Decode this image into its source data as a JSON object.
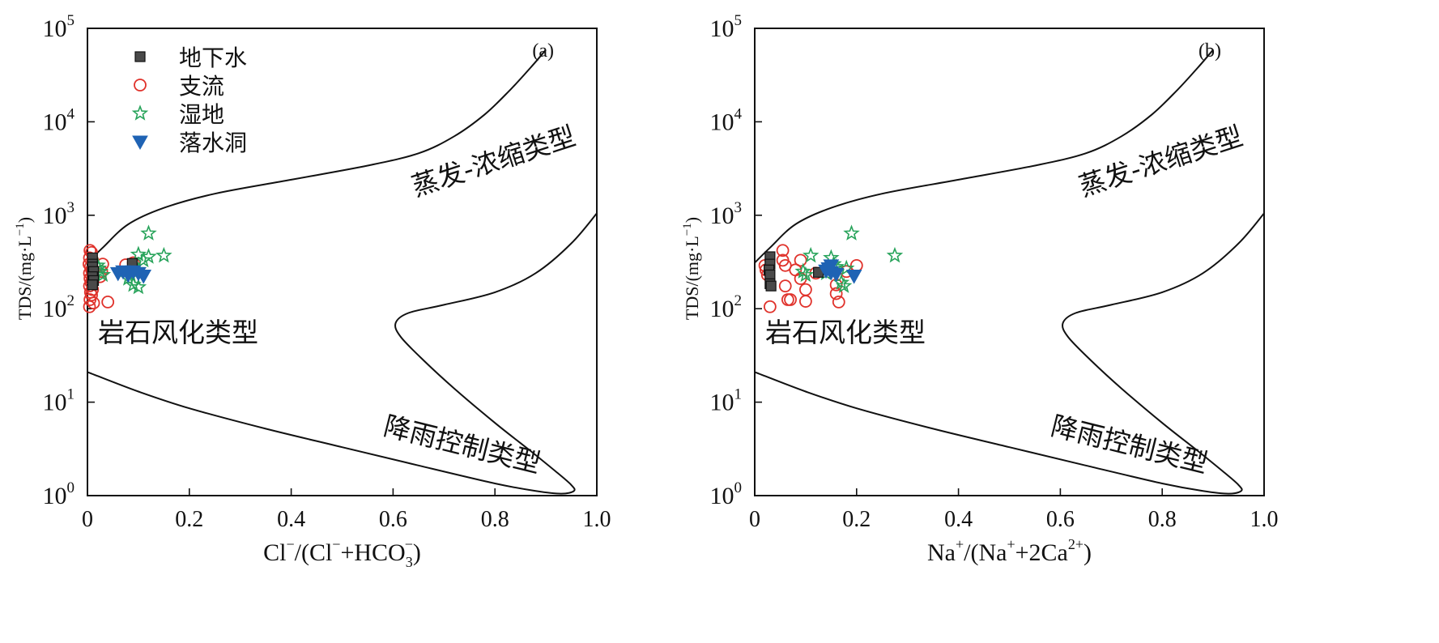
{
  "figure": {
    "panels": [
      "a",
      "b"
    ]
  },
  "chart_data": [
    {
      "type": "scatter",
      "panel_label": "(a)",
      "title": "",
      "xlabel": {
        "main": "Cl",
        "sup1": "−",
        "mid": "/(Cl",
        "sup2": "−",
        "mid2": "+HCO",
        "sub": "3",
        "sup3": "−",
        "end": ")"
      },
      "ylabel": "TDS/(mg·L",
      "ylabel_sup": "−1",
      "ylabel_end": ")",
      "xlim": [
        0,
        1.0
      ],
      "ylim": [
        1,
        100000
      ],
      "yscale": "log",
      "x_ticks": [
        {
          "value": 0,
          "label": "0"
        },
        {
          "value": 0.2,
          "label": "0.2"
        },
        {
          "value": 0.4,
          "label": "0.4"
        },
        {
          "value": 0.6,
          "label": "0.6"
        },
        {
          "value": 0.8,
          "label": "0.8"
        },
        {
          "value": 1.0,
          "label": "1.0"
        }
      ],
      "y_ticks": [
        {
          "value": 1,
          "base": "10",
          "exp": "0"
        },
        {
          "value": 10,
          "base": "10",
          "exp": "1"
        },
        {
          "value": 100,
          "base": "10",
          "exp": "2"
        },
        {
          "value": 1000,
          "base": "10",
          "exp": "3"
        },
        {
          "value": 10000,
          "base": "10",
          "exp": "4"
        },
        {
          "value": 100000,
          "base": "10",
          "exp": "5"
        }
      ],
      "legend": {
        "placement": "top-left",
        "entries": [
          "地下水",
          "支流",
          "湿地",
          "落水洞"
        ]
      },
      "annotations": [
        "蒸发-浓缩类型",
        "岩石风化类型",
        "降雨控制类型"
      ],
      "curves": {
        "upper": [
          [
            0,
            310
          ],
          [
            0.03,
            450
          ],
          [
            0.08,
            800
          ],
          [
            0.15,
            1200
          ],
          [
            0.25,
            1700
          ],
          [
            0.4,
            2400
          ],
          [
            0.55,
            3400
          ],
          [
            0.65,
            4600
          ],
          [
            0.72,
            7000
          ],
          [
            0.78,
            12000
          ],
          [
            0.83,
            22000
          ],
          [
            0.87,
            38000
          ],
          [
            0.9,
            59000
          ]
        ],
        "lower": [
          [
            1.0,
            1050
          ],
          [
            0.95,
            500
          ],
          [
            0.88,
            240
          ],
          [
            0.8,
            150
          ],
          [
            0.7,
            110
          ],
          [
            0.63,
            90
          ],
          [
            0.605,
            70
          ],
          [
            0.615,
            50
          ],
          [
            0.66,
            28
          ],
          [
            0.72,
            14
          ],
          [
            0.8,
            6
          ],
          [
            0.87,
            3
          ],
          [
            0.92,
            1.8
          ],
          [
            0.95,
            1.3
          ],
          [
            0.955,
            1.12
          ],
          [
            0.93,
            1.05
          ],
          [
            0.88,
            1.12
          ],
          [
            0.8,
            1.35
          ],
          [
            0.65,
            2.1
          ],
          [
            0.5,
            3.3
          ],
          [
            0.35,
            5.2
          ],
          [
            0.2,
            8.6
          ],
          [
            0.1,
            13
          ],
          [
            0,
            21
          ]
        ]
      },
      "series": [
        {
          "name": "地下水",
          "marker": "square",
          "points": [
            [
              0.01,
              350
            ],
            [
              0.01,
              300
            ],
            [
              0.01,
              280
            ],
            [
              0.012,
              250
            ],
            [
              0.01,
              220
            ],
            [
              0.012,
              200
            ],
            [
              0.01,
              180
            ],
            [
              0.088,
              305
            ]
          ]
        },
        {
          "name": "支流",
          "marker": "circle",
          "points": [
            [
              0.005,
              420
            ],
            [
              0.008,
              400
            ],
            [
              0.004,
              350
            ],
            [
              0.01,
              330
            ],
            [
              0.003,
              300
            ],
            [
              0.006,
              280
            ],
            [
              0.008,
              260
            ],
            [
              0.004,
              240
            ],
            [
              0.01,
              230
            ],
            [
              0.005,
              210
            ],
            [
              0.007,
              190
            ],
            [
              0.004,
              175
            ],
            [
              0.01,
              160
            ],
            [
              0.006,
              150
            ],
            [
              0.008,
              140
            ],
            [
              0.005,
              125
            ],
            [
              0.012,
              115
            ],
            [
              0.004,
              105
            ],
            [
              0.025,
              220
            ],
            [
              0.028,
              250
            ],
            [
              0.03,
              300
            ],
            [
              0.04,
              118
            ],
            [
              0.075,
              295
            ],
            [
              0.09,
              310
            ]
          ]
        },
        {
          "name": "湿地",
          "marker": "star",
          "points": [
            [
              0.02,
              290
            ],
            [
              0.022,
              270
            ],
            [
              0.025,
              250
            ],
            [
              0.03,
              230
            ],
            [
              0.1,
              380
            ],
            [
              0.11,
              330
            ],
            [
              0.12,
              360
            ],
            [
              0.15,
              370
            ],
            [
              0.12,
              640
            ],
            [
              0.08,
              210
            ],
            [
              0.09,
              180
            ],
            [
              0.1,
              170
            ],
            [
              0.085,
              230
            ],
            [
              0.095,
              250
            ],
            [
              0.1,
              260
            ]
          ]
        },
        {
          "name": "落水洞",
          "marker": "triangle",
          "points": [
            [
              0.06,
              240
            ],
            [
              0.07,
              250
            ],
            [
              0.08,
              230
            ],
            [
              0.11,
              225
            ],
            [
              0.1,
              240
            ],
            [
              0.09,
              250
            ]
          ]
        }
      ]
    },
    {
      "type": "scatter",
      "panel_label": "(b)",
      "title": "",
      "xlabel": {
        "main": "Na",
        "sup1": "+",
        "mid": "/(Na",
        "sup2": "+",
        "mid2": "+2Ca",
        "sup3": "2+",
        "end": ")"
      },
      "ylabel": "TDS/(mg·L",
      "ylabel_sup": "−1",
      "ylabel_end": ")",
      "xlim": [
        0,
        1.0
      ],
      "ylim": [
        1,
        100000
      ],
      "yscale": "log",
      "x_ticks": [
        {
          "value": 0,
          "label": "0"
        },
        {
          "value": 0.2,
          "label": "0.2"
        },
        {
          "value": 0.4,
          "label": "0.4"
        },
        {
          "value": 0.6,
          "label": "0.6"
        },
        {
          "value": 0.8,
          "label": "0.8"
        },
        {
          "value": 1.0,
          "label": "1.0"
        }
      ],
      "y_ticks": [
        {
          "value": 1,
          "base": "10",
          "exp": "0"
        },
        {
          "value": 10,
          "base": "10",
          "exp": "1"
        },
        {
          "value": 100,
          "base": "10",
          "exp": "2"
        },
        {
          "value": 1000,
          "base": "10",
          "exp": "3"
        },
        {
          "value": 10000,
          "base": "10",
          "exp": "4"
        },
        {
          "value": 100000,
          "base": "10",
          "exp": "5"
        }
      ],
      "legend": null,
      "annotations": [
        "蒸发-浓缩类型",
        "岩石风化类型",
        "降雨控制类型"
      ],
      "curves": {
        "upper": [
          [
            0,
            310
          ],
          [
            0.03,
            450
          ],
          [
            0.08,
            800
          ],
          [
            0.15,
            1200
          ],
          [
            0.25,
            1700
          ],
          [
            0.4,
            2400
          ],
          [
            0.55,
            3400
          ],
          [
            0.65,
            4600
          ],
          [
            0.72,
            7000
          ],
          [
            0.78,
            12000
          ],
          [
            0.83,
            22000
          ],
          [
            0.87,
            38000
          ],
          [
            0.9,
            59000
          ]
        ],
        "lower": [
          [
            1.0,
            1050
          ],
          [
            0.95,
            500
          ],
          [
            0.88,
            240
          ],
          [
            0.8,
            150
          ],
          [
            0.7,
            110
          ],
          [
            0.63,
            90
          ],
          [
            0.605,
            70
          ],
          [
            0.615,
            50
          ],
          [
            0.66,
            28
          ],
          [
            0.72,
            14
          ],
          [
            0.8,
            6
          ],
          [
            0.87,
            3
          ],
          [
            0.92,
            1.8
          ],
          [
            0.95,
            1.3
          ],
          [
            0.955,
            1.12
          ],
          [
            0.93,
            1.05
          ],
          [
            0.88,
            1.12
          ],
          [
            0.8,
            1.35
          ],
          [
            0.65,
            2.1
          ],
          [
            0.5,
            3.3
          ],
          [
            0.35,
            5.2
          ],
          [
            0.2,
            8.6
          ],
          [
            0.1,
            13
          ],
          [
            0,
            21
          ]
        ]
      },
      "series": [
        {
          "name": "地下水",
          "marker": "square",
          "points": [
            [
              0.03,
              360
            ],
            [
              0.03,
              300
            ],
            [
              0.028,
              260
            ],
            [
              0.03,
              230
            ],
            [
              0.03,
              185
            ],
            [
              0.032,
              175
            ],
            [
              0.125,
              245
            ]
          ]
        },
        {
          "name": "支流",
          "marker": "circle",
          "points": [
            [
              0.02,
              290
            ],
            [
              0.022,
              260
            ],
            [
              0.025,
              230
            ],
            [
              0.03,
              105
            ],
            [
              0.055,
              420
            ],
            [
              0.055,
              330
            ],
            [
              0.06,
              290
            ],
            [
              0.06,
              175
            ],
            [
              0.065,
              125
            ],
            [
              0.07,
              125
            ],
            [
              0.08,
              260
            ],
            [
              0.09,
              330
            ],
            [
              0.09,
              210
            ],
            [
              0.1,
              160
            ],
            [
              0.1,
              120
            ],
            [
              0.12,
              240
            ],
            [
              0.16,
              145
            ],
            [
              0.165,
              118
            ],
            [
              0.18,
              250
            ],
            [
              0.2,
              290
            ],
            [
              0.16,
              180
            ]
          ]
        },
        {
          "name": "湿地",
          "marker": "star",
          "points": [
            [
              0.095,
              250
            ],
            [
              0.1,
              230
            ],
            [
              0.11,
              370
            ],
            [
              0.15,
              350
            ],
            [
              0.155,
              300
            ],
            [
              0.16,
              280
            ],
            [
              0.17,
              190
            ],
            [
              0.175,
              175
            ],
            [
              0.18,
              270
            ],
            [
              0.19,
              640
            ],
            [
              0.275,
              370
            ],
            [
              0.14,
              240
            ]
          ]
        },
        {
          "name": "落水洞",
          "marker": "triangle",
          "points": [
            [
              0.14,
              255
            ],
            [
              0.15,
              245
            ],
            [
              0.145,
              270
            ],
            [
              0.16,
              235
            ],
            [
              0.195,
              225
            ],
            [
              0.15,
              290
            ]
          ]
        }
      ]
    }
  ],
  "colors": {
    "groundwater": "#4a4a4a",
    "tributary": "#e0322b",
    "wetland": "#27a35a",
    "sinkhole": "#1f63b4",
    "line": "#111111"
  }
}
